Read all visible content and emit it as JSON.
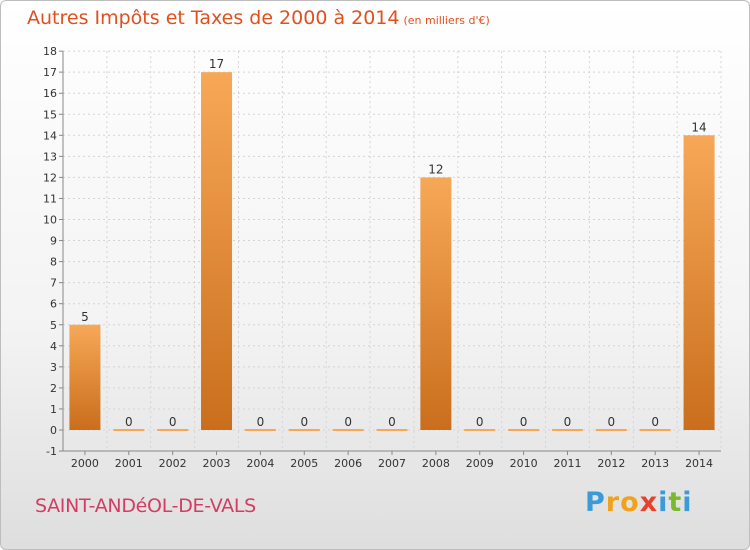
{
  "title": "Autres Impôts et Taxes de 2000 à 2014",
  "unit_label": "(en milliers d'€)",
  "commune": "SAINT-ANDéOL-DE-VALS",
  "logo": {
    "letters": [
      "P",
      "r",
      "o",
      "x",
      "i",
      "t",
      "i"
    ],
    "colors": [
      "#3a9bd8",
      "#f0a21e",
      "#f0a21e",
      "#e8412b",
      "#3a9bd8",
      "#7ab92f",
      "#3a9bd8"
    ]
  },
  "chart_data": {
    "type": "bar",
    "categories": [
      "2000",
      "2001",
      "2002",
      "2003",
      "2004",
      "2005",
      "2006",
      "2007",
      "2008",
      "2009",
      "2010",
      "2011",
      "2012",
      "2013",
      "2014"
    ],
    "values": [
      5,
      0,
      0,
      17,
      0,
      0,
      0,
      0,
      12,
      0,
      0,
      0,
      0,
      0,
      14
    ],
    "data_labels": [
      "5",
      "0",
      "0",
      "17",
      "0",
      "0",
      "0",
      "0",
      "12",
      "0",
      "0",
      "0",
      "0",
      "0",
      "14"
    ],
    "ylim": [
      -1,
      18
    ],
    "yticks": [
      "-1",
      "0",
      "1",
      "2",
      "3",
      "4",
      "5",
      "6",
      "7",
      "8",
      "9",
      "10",
      "11",
      "12",
      "13",
      "14",
      "15",
      "16",
      "17",
      "18"
    ],
    "grid": true,
    "bar_color_top": "#f7a857",
    "bar_color_bottom": "#c96e1c"
  }
}
